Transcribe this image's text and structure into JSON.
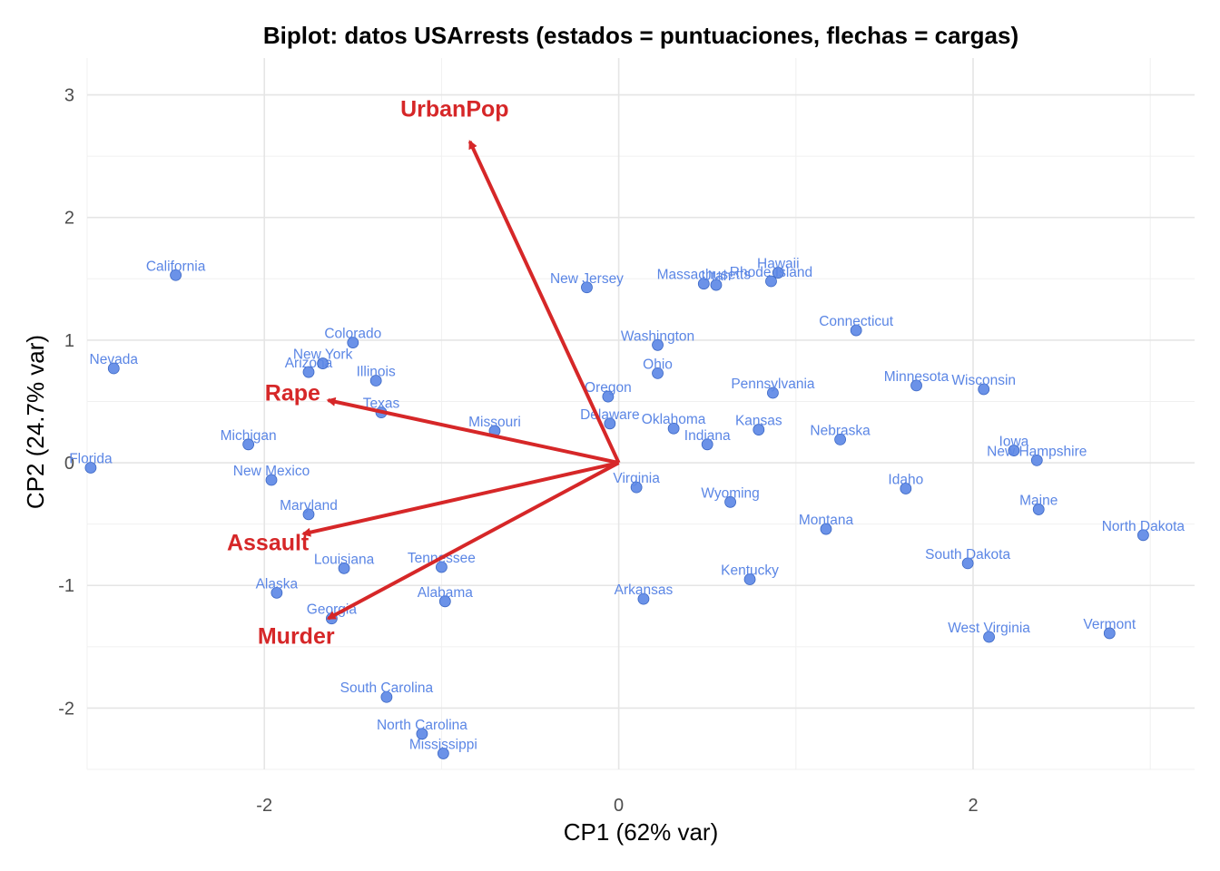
{
  "chart_data": {
    "type": "scatter",
    "title": "Biplot: datos USArrests (estados = puntuaciones, flechas = cargas)",
    "xlabel": "CP1 (62% var)",
    "ylabel": "CP2 (24.7% var)",
    "xlim": [
      -3.0,
      3.25
    ],
    "ylim": [
      -2.5,
      3.3
    ],
    "x_ticks": [
      -2,
      0,
      2
    ],
    "x_tick_labels": [
      "-2",
      "0",
      "2"
    ],
    "y_ticks": [
      -2,
      -1,
      0,
      1,
      2,
      3
    ],
    "y_tick_labels": [
      "-2",
      "-1",
      "0",
      "1",
      "2",
      "3"
    ],
    "grid": true,
    "point_color": "#5b86e5",
    "arrow_color": "#d62728",
    "points": [
      {
        "name": "Alabama",
        "x": -0.98,
        "y": -1.13
      },
      {
        "name": "Alaska",
        "x": -1.93,
        "y": -1.06
      },
      {
        "name": "Arizona",
        "x": -1.75,
        "y": 0.74
      },
      {
        "name": "Arkansas",
        "x": 0.14,
        "y": -1.11
      },
      {
        "name": "California",
        "x": -2.5,
        "y": 1.53
      },
      {
        "name": "Colorado",
        "x": -1.5,
        "y": 0.98
      },
      {
        "name": "Connecticut",
        "x": 1.34,
        "y": 1.08
      },
      {
        "name": "Delaware",
        "x": -0.05,
        "y": 0.32
      },
      {
        "name": "Florida",
        "x": -2.98,
        "y": -0.04
      },
      {
        "name": "Georgia",
        "x": -1.62,
        "y": -1.27
      },
      {
        "name": "Hawaii",
        "x": 0.9,
        "y": 1.55
      },
      {
        "name": "Idaho",
        "x": 1.62,
        "y": -0.21
      },
      {
        "name": "Illinois",
        "x": -1.37,
        "y": 0.67
      },
      {
        "name": "Indiana",
        "x": 0.5,
        "y": 0.15
      },
      {
        "name": "Iowa",
        "x": 2.23,
        "y": 0.1
      },
      {
        "name": "Kansas",
        "x": 0.79,
        "y": 0.27
      },
      {
        "name": "Kentucky",
        "x": 0.74,
        "y": -0.95
      },
      {
        "name": "Louisiana",
        "x": -1.55,
        "y": -0.86
      },
      {
        "name": "Maine",
        "x": 2.37,
        "y": -0.38
      },
      {
        "name": "Maryland",
        "x": -1.75,
        "y": -0.42
      },
      {
        "name": "Massachusetts",
        "x": 0.48,
        "y": 1.46
      },
      {
        "name": "Michigan",
        "x": -2.09,
        "y": 0.15
      },
      {
        "name": "Minnesota",
        "x": 1.68,
        "y": 0.63
      },
      {
        "name": "Mississippi",
        "x": -0.99,
        "y": -2.37
      },
      {
        "name": "Missouri",
        "x": -0.7,
        "y": 0.26
      },
      {
        "name": "Montana",
        "x": 1.17,
        "y": -0.54
      },
      {
        "name": "Nebraska",
        "x": 1.25,
        "y": 0.19
      },
      {
        "name": "Nevada",
        "x": -2.85,
        "y": 0.77
      },
      {
        "name": "New Hampshire",
        "x": 2.36,
        "y": 0.02
      },
      {
        "name": "New Jersey",
        "x": -0.18,
        "y": 1.43
      },
      {
        "name": "New Mexico",
        "x": -1.96,
        "y": -0.14
      },
      {
        "name": "New York",
        "x": -1.67,
        "y": 0.81
      },
      {
        "name": "North Carolina",
        "x": -1.11,
        "y": -2.21
      },
      {
        "name": "North Dakota",
        "x": 2.96,
        "y": -0.59
      },
      {
        "name": "Ohio",
        "x": 0.22,
        "y": 0.73
      },
      {
        "name": "Oklahoma",
        "x": 0.31,
        "y": 0.28
      },
      {
        "name": "Oregon",
        "x": -0.06,
        "y": 0.54
      },
      {
        "name": "Pennsylvania",
        "x": 0.87,
        "y": 0.57
      },
      {
        "name": "Rhode Island",
        "x": 0.86,
        "y": 1.48
      },
      {
        "name": "South Carolina",
        "x": -1.31,
        "y": -1.91
      },
      {
        "name": "South Dakota",
        "x": 1.97,
        "y": -0.82
      },
      {
        "name": "Tennessee",
        "x": -1.0,
        "y": -0.85
      },
      {
        "name": "Texas",
        "x": -1.34,
        "y": 0.41
      },
      {
        "name": "Utah",
        "x": 0.55,
        "y": 1.45
      },
      {
        "name": "Vermont",
        "x": 2.77,
        "y": -1.39
      },
      {
        "name": "Virginia",
        "x": 0.1,
        "y": -0.2
      },
      {
        "name": "Washington",
        "x": 0.22,
        "y": 0.96
      },
      {
        "name": "West Virginia",
        "x": 2.09,
        "y": -1.42
      },
      {
        "name": "Wisconsin",
        "x": 2.06,
        "y": 0.6
      },
      {
        "name": "Wyoming",
        "x": 0.63,
        "y": -0.32
      }
    ],
    "loadings": [
      {
        "name": "Murder",
        "x": -1.64,
        "y": -1.27
      },
      {
        "name": "Assault",
        "x": -1.78,
        "y": -0.58
      },
      {
        "name": "UrbanPop",
        "x": -0.84,
        "y": 2.62
      },
      {
        "name": "Rape",
        "x": -1.64,
        "y": 0.51
      }
    ]
  }
}
